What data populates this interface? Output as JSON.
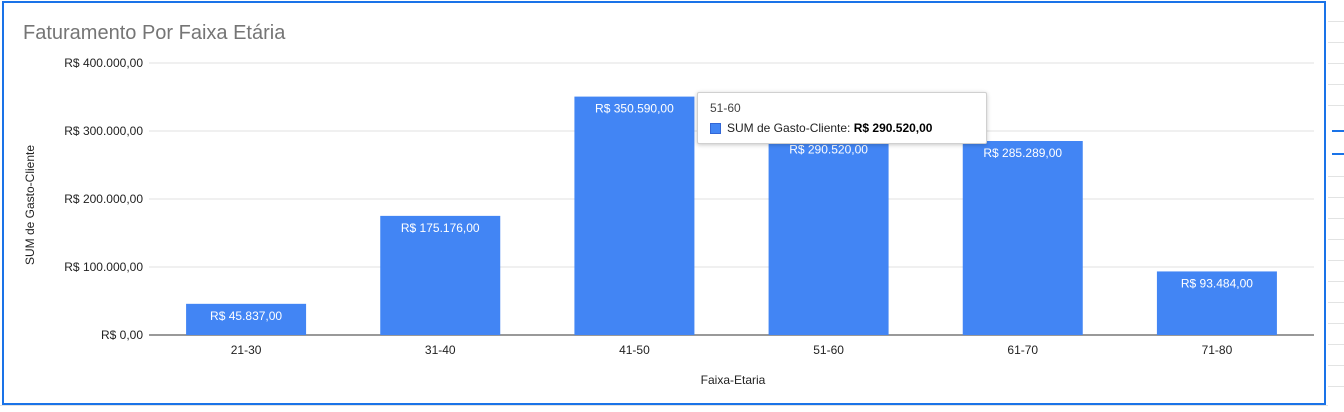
{
  "chart_data": {
    "type": "bar",
    "title": "Faturamento Por Faixa Etária",
    "xlabel": "Faixa-Etaria",
    "ylabel": "SUM de Gasto-Cliente",
    "categories": [
      "21-30",
      "31-40",
      "41-50",
      "51-60",
      "61-70",
      "71-80"
    ],
    "series": [
      {
        "name": "SUM de Gasto-Cliente",
        "values": [
          45837,
          175176,
          350590,
          290520,
          285289,
          93484
        ],
        "value_labels": [
          "R$ 45.837,00",
          "R$ 175.176,00",
          "R$ 350.590,00",
          "R$ 290.520,00",
          "R$ 285.289,00",
          "R$ 93.484,00"
        ],
        "color": "#4285f4"
      }
    ],
    "ylim": [
      0,
      400000
    ],
    "yticks": [
      0,
      100000,
      200000,
      300000,
      400000
    ],
    "ytick_labels": [
      "R$ 0,00",
      "R$ 100.000,00",
      "R$ 200.000,00",
      "R$ 300.000,00",
      "R$ 400.000,00"
    ],
    "grid": true,
    "legend": "none"
  },
  "tooltip": {
    "title": "51-60",
    "series_label": "SUM de Gasto-Cliente:",
    "value": "R$ 290.520,00"
  },
  "colors": {
    "bar": "#4285f4",
    "frame": "#1a73e8",
    "title": "#757575",
    "grid": "#e0e0e0",
    "axis": "#333333"
  }
}
